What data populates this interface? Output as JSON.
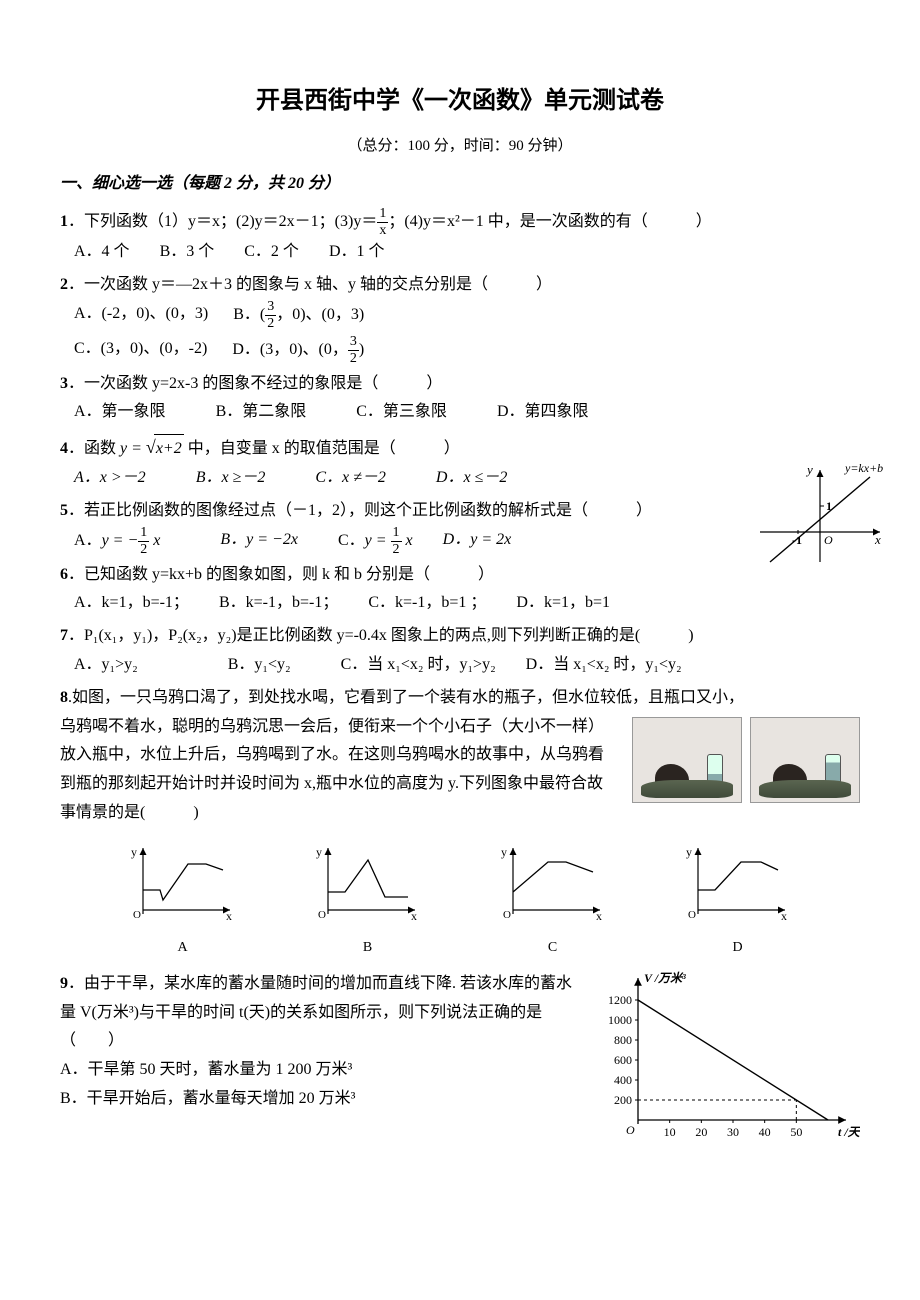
{
  "doc": {
    "title": "开县西街中学《一次函数》单元测试卷",
    "subtitle": "（总分：100 分，时间：90 分钟）",
    "section1_heading": "一、细心选一选（每题 2 分，共 20 分）"
  },
  "q1": {
    "num": "1",
    "stem_a": "．下列函数（1）y＝x；(2)y＝2x－1；(3)y＝",
    "frac_num": "1",
    "frac_den": "x",
    "stem_b": "；(4)y＝x²－1 中，是一次函数的有（　　　）",
    "optA": "A．4 个",
    "optB": "B．3 个",
    "optC": "C．2 个",
    "optD": "D．1 个"
  },
  "q2": {
    "num": "2",
    "stem": "．一次函数 y＝—2x＋3 的图象与 x 轴、y 轴的交点分别是（　　　）",
    "optA_pre": "A．(-2，0)、(0，3)",
    "optB_pre": "B．(",
    "optB_frac_num": "3",
    "optB_frac_den": "2",
    "optB_post": "，0)、(0，3)",
    "optC": "C．(3，0)、(0，-2)",
    "optD_pre": "D．(3，0)、(0，",
    "optD_frac_num": "3",
    "optD_frac_den": "2",
    "optD_post": ")"
  },
  "q3": {
    "num": "3",
    "stem": "．一次函数 y=2x-3 的图象不经过的象限是（　　　）",
    "optA": "A．第一象限",
    "optB": "B．第二象限",
    "optC": "C．第三象限",
    "optD": "D．第四象限"
  },
  "q4": {
    "num": "4",
    "stem_a": "．函数 ",
    "func": "y = √(x+2)",
    "stem_b": " 中，自变量 x 的取值范围是（　　　）",
    "optA": "A．x >－2",
    "optB": "B．x ≥－2",
    "optC": "C．x ≠－2",
    "optD": "D．x ≤－2"
  },
  "q5": {
    "num": "5",
    "stem": "．若正比例函数的图像经过点（－1，2），则这个正比例函数的解析式是（　　　）",
    "optA_pre": "A．",
    "optA_frac_num": "1",
    "optA_frac_den": "2",
    "optB": "B．y = −2x",
    "optC_pre": "C．",
    "optC_frac_num": "1",
    "optC_frac_den": "2",
    "optD": "D．y = 2x"
  },
  "q6": {
    "num": "6",
    "stem": "．已知函数 y=kx+b 的图象如图，则 k 和 b 分别是（　　　）",
    "optA": "A．k=1，b=-1；",
    "optB": "B．k=-1，b=-1；",
    "optC": "C．k=-1，b=1 ；",
    "optD": "D．k=1，b=1",
    "graph": {
      "line_label": "y=kx+b",
      "x_label": "x",
      "y_label": "y",
      "origin": "O",
      "x_int": "-1",
      "y_int": "1",
      "line_color": "#000000",
      "axis_color": "#000000"
    }
  },
  "q7": {
    "num": "7",
    "stem": "．P₁(x₁，y₁)，P₂(x₂，y₂)是正比例函数 y=-0.4x 图象上的两点,则下列判断正确的是(　　　)",
    "optA": "A．y₁>y₂",
    "optB": "B．y₁<y₂",
    "optC": "C．当 x₁<x₂ 时，y₁>y₂",
    "optD": "D．当 x₁<x₂ 时，y₁<y₂"
  },
  "q8": {
    "num": "8",
    "lead": "如图，一只乌鸦口渴了，到处找水喝，它看到了一个装有水的瓶子，但水位较低，且瓶口又小，",
    "body": "乌鸦喝不着水，聪明的乌鸦沉思一会后，便衔来一个个小石子（大小不一样）放入瓶中，水位上升后，乌鸦喝到了水。在这则乌鸦喝水的故事中，从乌鸦看到瓶的那刻起开始计时并设时间为 x,瓶中水位的高度为 y.下列图象中最符合故事情景的是(　　　)",
    "labels": {
      "A": "A",
      "B": "B",
      "C": "C",
      "D": "D"
    },
    "graph_axes": {
      "x": "x",
      "y": "y",
      "origin": "O"
    },
    "graph_style": {
      "axis_color": "#000000",
      "line_color": "#000000",
      "line_width": 1.2
    }
  },
  "q9": {
    "num": "9",
    "stem": "．由于干旱，某水库的蓄水量随时间的增加而直线下降. 若该水库的蓄水量 V(万米³)与干旱的时间 t(天)的关系如图所示，则下列说法正确的是（　　）",
    "optA": "A．干旱第 50 天时，蓄水量为 1 200 万米³",
    "optB": "B．干旱开始后，蓄水量每天增加 20 万米³",
    "chart": {
      "type": "line",
      "y_label": "V /万米³",
      "x_label": "t /天",
      "origin": "O",
      "y_ticks": [
        200,
        400,
        600,
        800,
        1000,
        1200
      ],
      "x_ticks": [
        10,
        20,
        30,
        40,
        50
      ],
      "line_points": [
        [
          0,
          1200
        ],
        [
          60,
          0
        ]
      ],
      "line_color": "#000000",
      "axis_color": "#000000",
      "dash_color": "#000000",
      "line_width": 1.4,
      "axis_fontsize": 12
    }
  }
}
